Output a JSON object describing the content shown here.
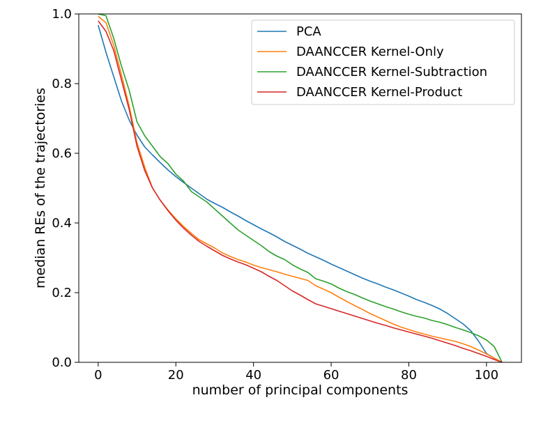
{
  "chart_data": {
    "type": "line",
    "xlabel": "number of principal components",
    "ylabel": "median REs of the trajectories",
    "xlim": [
      -5,
      109
    ],
    "ylim": [
      0.0,
      1.0
    ],
    "xticks": [
      0,
      20,
      40,
      60,
      80,
      100
    ],
    "yticks": [
      0.0,
      0.2,
      0.4,
      0.6,
      0.8,
      1.0
    ],
    "xtick_labels": [
      "0",
      "20",
      "40",
      "60",
      "80",
      "100"
    ],
    "ytick_labels": [
      "0.0",
      "0.2",
      "0.4",
      "0.6",
      "0.8",
      "1.0"
    ],
    "grid": false,
    "legend_position": "top-right",
    "series": [
      {
        "name": "PCA",
        "color": "#1f77b4",
        "x": [
          0,
          2,
          4,
          6,
          8,
          10,
          12,
          14,
          16,
          18,
          20,
          22,
          24,
          26,
          28,
          30,
          32,
          34,
          36,
          38,
          40,
          42,
          44,
          46,
          48,
          50,
          52,
          54,
          56,
          58,
          60,
          62,
          64,
          66,
          68,
          70,
          72,
          74,
          76,
          78,
          80,
          82,
          84,
          86,
          88,
          90,
          92,
          94,
          96,
          98,
          100,
          102,
          104
        ],
        "y": [
          0.968,
          0.89,
          0.82,
          0.75,
          0.695,
          0.652,
          0.618,
          0.595,
          0.573,
          0.552,
          0.533,
          0.516,
          0.5,
          0.484,
          0.468,
          0.456,
          0.445,
          0.432,
          0.42,
          0.407,
          0.395,
          0.383,
          0.372,
          0.36,
          0.347,
          0.336,
          0.325,
          0.313,
          0.303,
          0.293,
          0.282,
          0.272,
          0.262,
          0.252,
          0.242,
          0.233,
          0.225,
          0.216,
          0.208,
          0.199,
          0.19,
          0.18,
          0.172,
          0.163,
          0.153,
          0.14,
          0.125,
          0.11,
          0.09,
          0.06,
          0.025,
          0.012,
          0.0
        ]
      },
      {
        "name": "DAANCCER Kernel-Only",
        "color": "#ff7f0e",
        "x": [
          0,
          2,
          4,
          6,
          8,
          10,
          12,
          14,
          16,
          18,
          20,
          22,
          24,
          26,
          28,
          30,
          32,
          34,
          36,
          38,
          40,
          42,
          44,
          46,
          48,
          50,
          52,
          54,
          56,
          58,
          60,
          62,
          64,
          66,
          68,
          70,
          72,
          74,
          76,
          78,
          80,
          82,
          84,
          86,
          88,
          90,
          92,
          94,
          96,
          98,
          100,
          102,
          104
        ],
        "y": [
          0.993,
          0.975,
          0.91,
          0.825,
          0.735,
          0.63,
          0.56,
          0.5,
          0.465,
          0.437,
          0.412,
          0.39,
          0.37,
          0.352,
          0.34,
          0.328,
          0.314,
          0.304,
          0.295,
          0.288,
          0.279,
          0.272,
          0.266,
          0.26,
          0.253,
          0.247,
          0.241,
          0.235,
          0.22,
          0.21,
          0.2,
          0.187,
          0.175,
          0.163,
          0.152,
          0.14,
          0.13,
          0.12,
          0.11,
          0.101,
          0.094,
          0.087,
          0.081,
          0.075,
          0.07,
          0.065,
          0.06,
          0.053,
          0.045,
          0.035,
          0.024,
          0.012,
          0.0
        ]
      },
      {
        "name": "DAANCCER Kernel-Subtraction",
        "color": "#2ca02c",
        "x": [
          0,
          2,
          4,
          6,
          8,
          10,
          12,
          14,
          16,
          18,
          20,
          22,
          24,
          26,
          28,
          30,
          32,
          34,
          36,
          38,
          40,
          42,
          44,
          46,
          48,
          50,
          52,
          54,
          56,
          58,
          60,
          62,
          64,
          66,
          68,
          70,
          72,
          74,
          76,
          78,
          80,
          82,
          84,
          86,
          88,
          90,
          92,
          94,
          96,
          98,
          100,
          102,
          104
        ],
        "y": [
          1.0,
          0.995,
          0.93,
          0.85,
          0.78,
          0.69,
          0.65,
          0.62,
          0.59,
          0.57,
          0.54,
          0.52,
          0.49,
          0.475,
          0.46,
          0.44,
          0.42,
          0.4,
          0.38,
          0.365,
          0.35,
          0.335,
          0.318,
          0.305,
          0.295,
          0.28,
          0.268,
          0.258,
          0.24,
          0.233,
          0.225,
          0.213,
          0.203,
          0.195,
          0.185,
          0.176,
          0.168,
          0.16,
          0.153,
          0.145,
          0.138,
          0.132,
          0.127,
          0.12,
          0.115,
          0.108,
          0.1,
          0.093,
          0.085,
          0.076,
          0.064,
          0.045,
          0.0
        ]
      },
      {
        "name": "DAANCCER Kernel-Product",
        "color": "#d62728",
        "x": [
          0,
          2,
          4,
          6,
          8,
          10,
          12,
          14,
          16,
          18,
          20,
          22,
          24,
          26,
          28,
          30,
          32,
          34,
          36,
          38,
          40,
          42,
          44,
          46,
          48,
          50,
          52,
          54,
          56,
          58,
          60,
          62,
          64,
          66,
          68,
          70,
          72,
          74,
          76,
          78,
          80,
          82,
          84,
          86,
          88,
          90,
          92,
          94,
          96,
          98,
          100,
          102,
          104
        ],
        "y": [
          0.98,
          0.95,
          0.895,
          0.81,
          0.725,
          0.62,
          0.55,
          0.5,
          0.465,
          0.435,
          0.408,
          0.385,
          0.365,
          0.347,
          0.333,
          0.32,
          0.307,
          0.297,
          0.288,
          0.28,
          0.27,
          0.26,
          0.247,
          0.235,
          0.22,
          0.205,
          0.193,
          0.18,
          0.168,
          0.161,
          0.154,
          0.147,
          0.14,
          0.133,
          0.126,
          0.119,
          0.112,
          0.106,
          0.099,
          0.093,
          0.087,
          0.081,
          0.075,
          0.069,
          0.062,
          0.055,
          0.048,
          0.04,
          0.033,
          0.025,
          0.017,
          0.008,
          0.0
        ]
      }
    ]
  }
}
